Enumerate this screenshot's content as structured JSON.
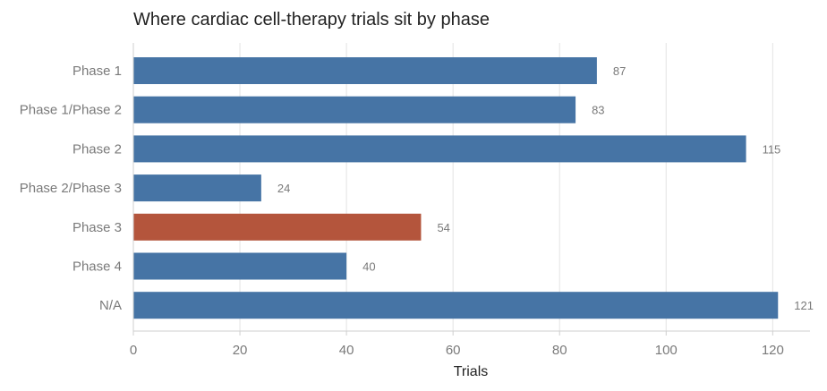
{
  "chart_data": {
    "type": "bar",
    "orientation": "horizontal",
    "title": "Where cardiac cell-therapy trials sit by phase",
    "xlabel": "Trials",
    "ylabel": "",
    "categories": [
      "Phase 1",
      "Phase 1/Phase 2",
      "Phase 2",
      "Phase 2/Phase 3",
      "Phase 3",
      "Phase 4",
      "N/A"
    ],
    "values": [
      87,
      83,
      115,
      24,
      54,
      40,
      121
    ],
    "highlight_category": "Phase 3",
    "xlim": [
      0,
      127
    ],
    "xticks": [
      0,
      20,
      40,
      60,
      80,
      100,
      120
    ],
    "grid": "vertical",
    "colors": {
      "bar": "#4674a5",
      "highlight": "#b4553c"
    }
  }
}
